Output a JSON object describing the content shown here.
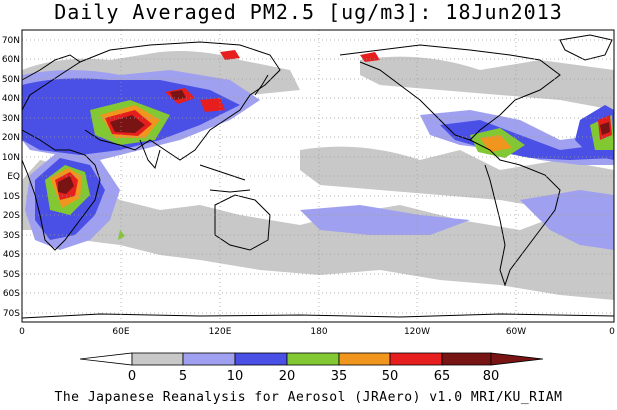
{
  "title": "Daily Averaged PM2.5 [ug/m3]: 18Jun2013",
  "footer": "The Japanese Reanalysis for Aerosol (JRAero) v1.0 MRI/KU_RIAM",
  "map": {
    "lon_range": [
      0,
      360
    ],
    "lat_range": [
      -75,
      75
    ],
    "lat_labels": [
      "70N",
      "60N",
      "50N",
      "40N",
      "30N",
      "20N",
      "10N",
      "EQ",
      "10S",
      "20S",
      "30S",
      "40S",
      "50S",
      "60S",
      "70S"
    ],
    "lon_labels": [
      "0",
      "60E",
      "120E",
      "180",
      "120W",
      "60W",
      "0"
    ]
  },
  "colorbar": {
    "labels": [
      "0",
      "5",
      "10",
      "20",
      "35",
      "50",
      "65",
      "80"
    ],
    "colors": [
      "#ffffff",
      "#c8c8c8",
      "#a0a0f0",
      "#4a50e6",
      "#82c832",
      "#f0961e",
      "#e61e1e",
      "#781414"
    ]
  }
}
